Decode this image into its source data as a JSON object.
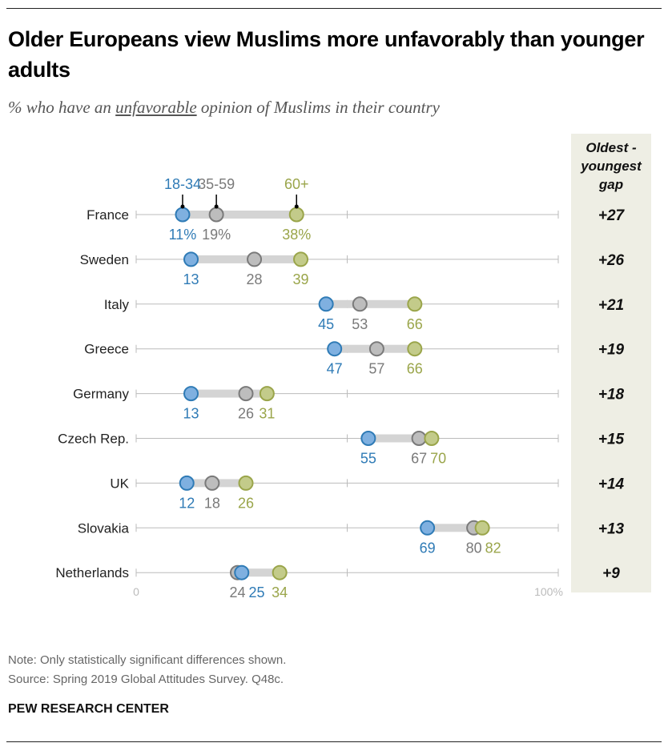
{
  "title": "Older Europeans view Muslims more unfavorably than younger adults",
  "subtitle": {
    "before": "% who have an ",
    "underlined": "unfavorable",
    "after": " opinion of Muslims in their country"
  },
  "note": "Note: Only statistically significant differences shown.",
  "source": "Source: Spring 2019 Global Attitudes Survey. Q48c.",
  "brand": "PEW RESEARCH CENTER",
  "chart_data": {
    "type": "dot",
    "xlim": [
      0,
      100
    ],
    "tick_labels": [
      "0",
      "100%"
    ],
    "gap_header": [
      "Oldest -",
      "youngest",
      "gap"
    ],
    "categories": [
      "France",
      "Sweden",
      "Italy",
      "Greece",
      "Germany",
      "Czech Rep.",
      "UK",
      "Slovakia",
      "Netherlands"
    ],
    "series": [
      {
        "name": "18-34",
        "color": "#2f7bb6",
        "fill": "#7fb0e0",
        "values": [
          11,
          13,
          45,
          47,
          13,
          55,
          12,
          69,
          25
        ]
      },
      {
        "name": "35-59",
        "color": "#7a7a7a",
        "fill": "#bdbdbd",
        "values": [
          19,
          28,
          53,
          57,
          26,
          67,
          18,
          80,
          24
        ]
      },
      {
        "name": "60+",
        "color": "#9aa54a",
        "fill": "#c3cb8a",
        "values": [
          38,
          39,
          66,
          66,
          31,
          70,
          26,
          82,
          34
        ]
      }
    ],
    "gap": [
      "+27",
      "+26",
      "+21",
      "+19",
      "+18",
      "+15",
      "+14",
      "+13",
      "+9"
    ],
    "gap_bg": "#eeeee4"
  }
}
